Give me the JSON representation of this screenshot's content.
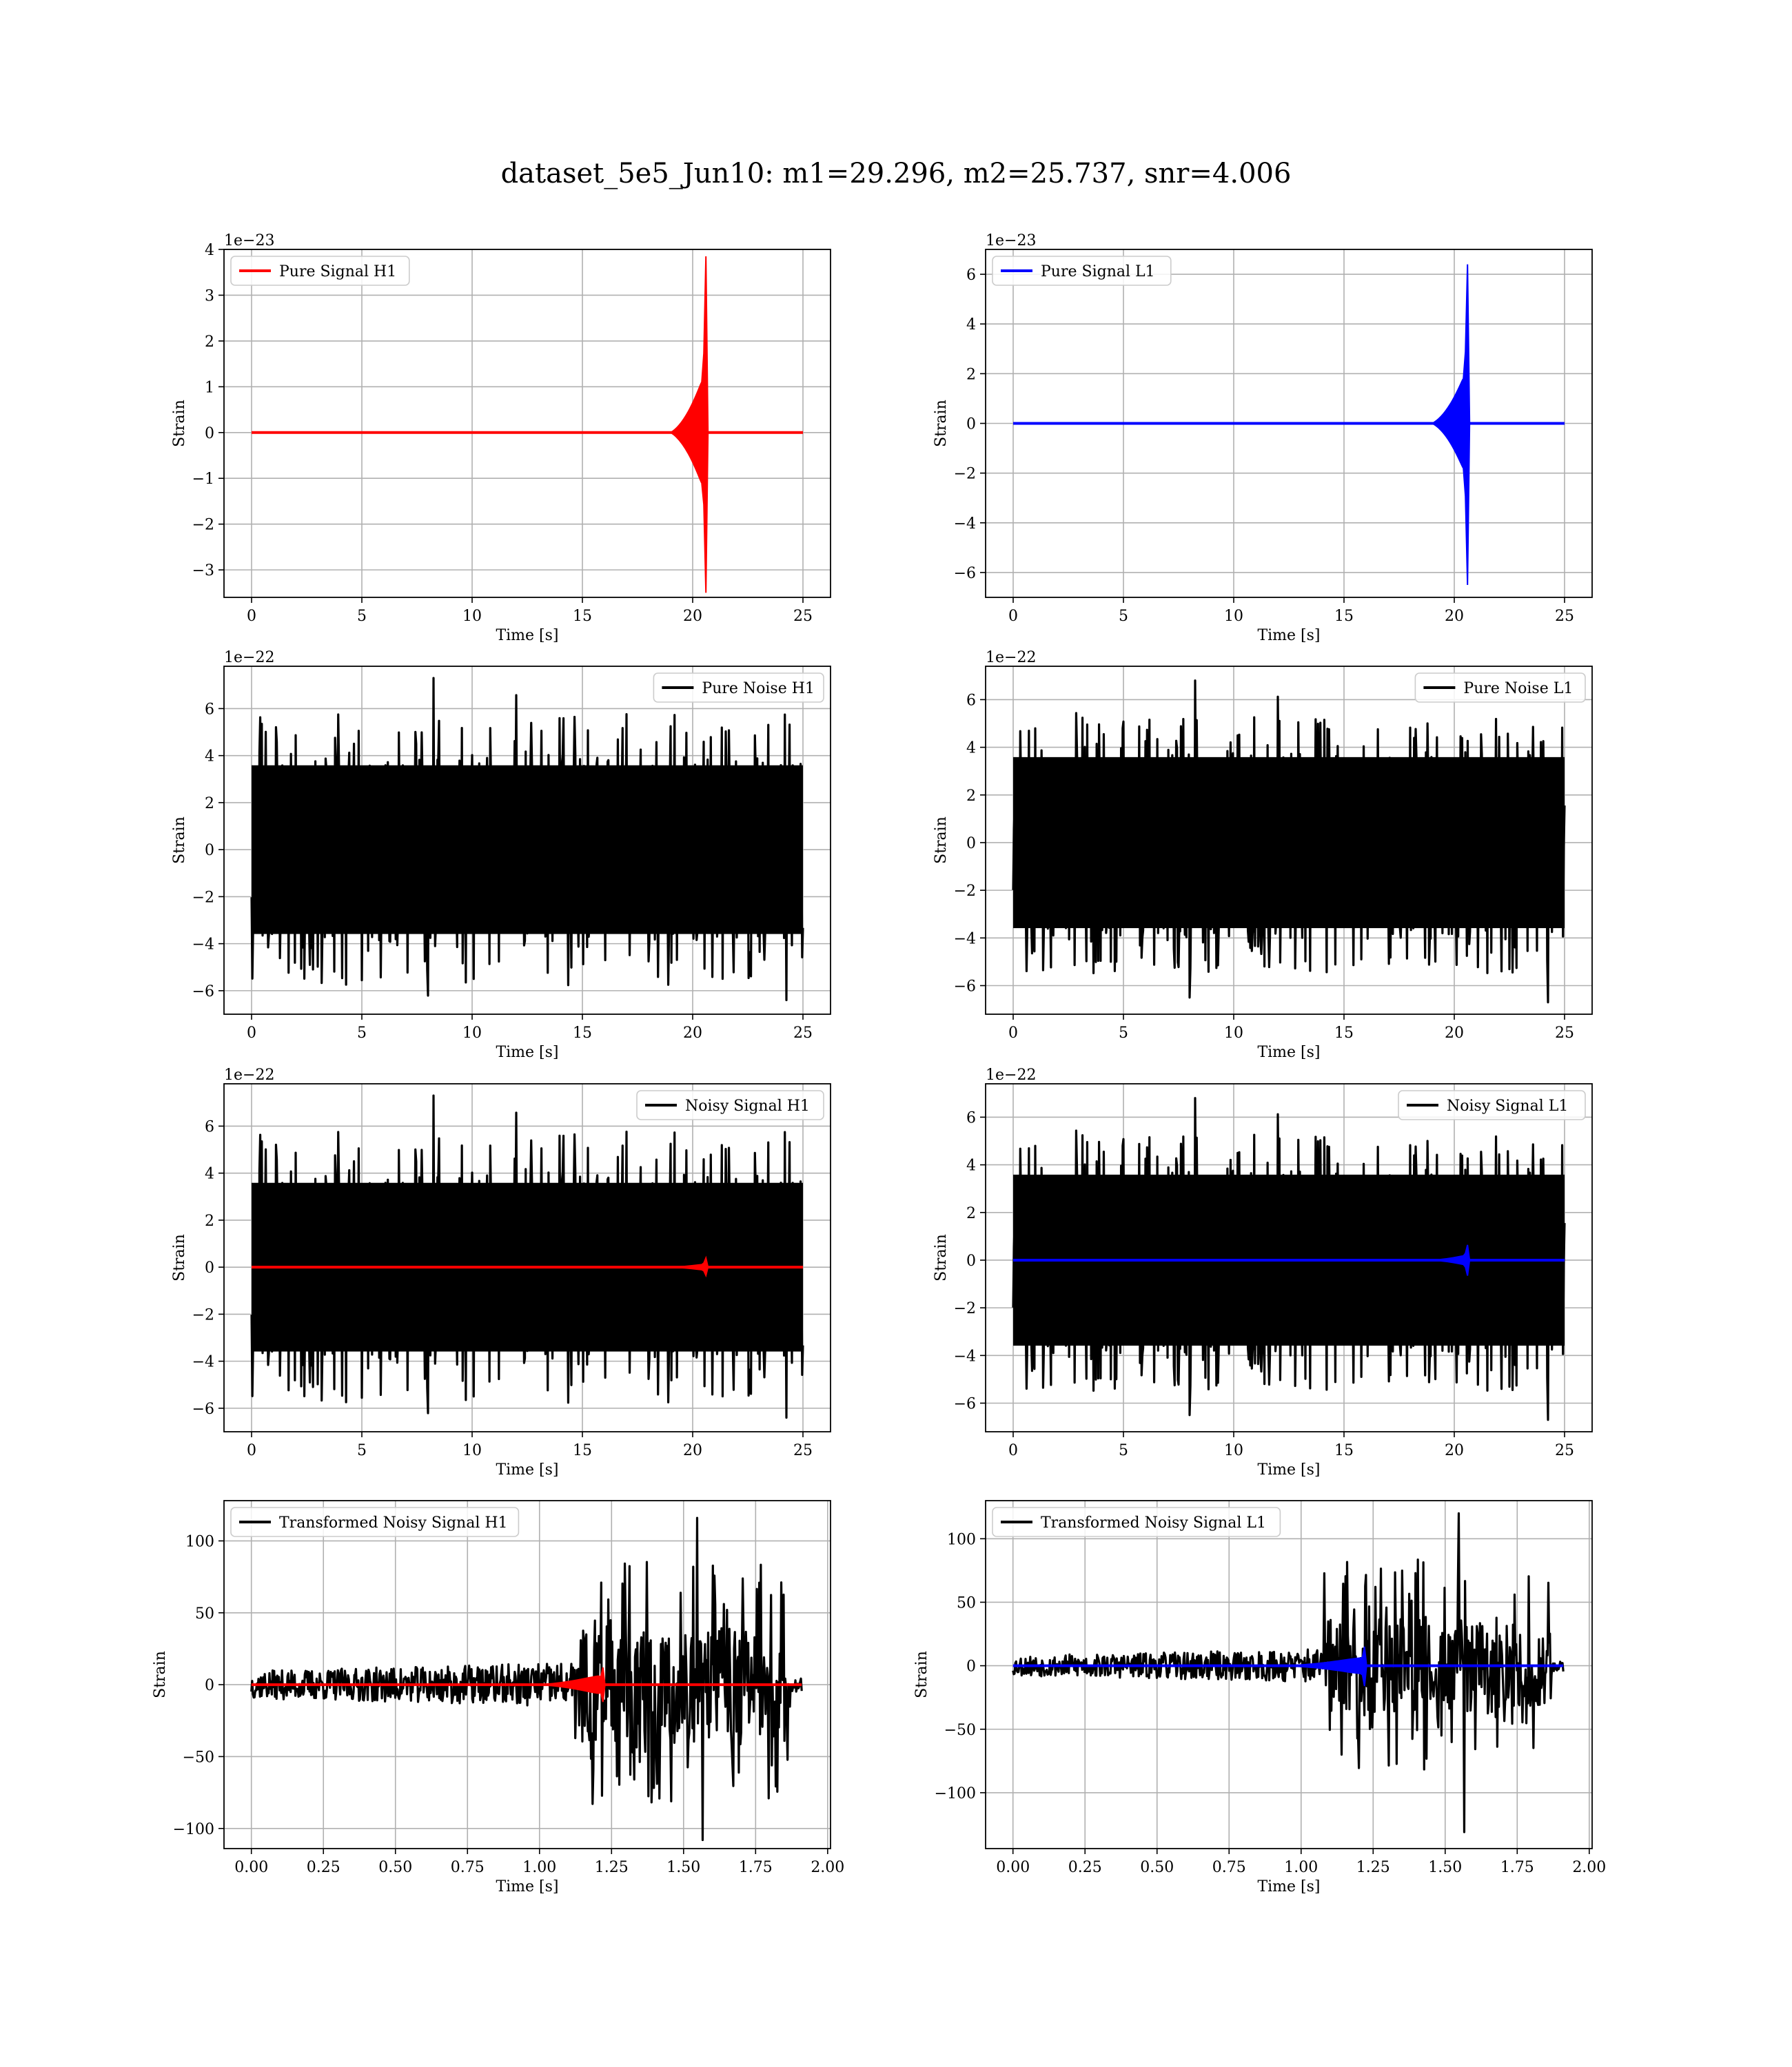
{
  "figure": {
    "title": "dataset_5e5_Jun10: m1=29.296, m2=25.737, snr=4.006"
  },
  "colors": {
    "h1_signal": "#ff0000",
    "l1_signal": "#0000ff",
    "noise": "#000000",
    "grid": "#b0b0b0"
  },
  "chart_data": [
    {
      "type": "line",
      "id": "pure-signal-h1",
      "xlabel": "Time [s]",
      "ylabel": "Strain",
      "offset_label": "1e−23",
      "xlim": [
        -1.25,
        26.25
      ],
      "ylim": [
        -3.6,
        4.0
      ],
      "xticks": [
        0,
        5,
        10,
        15,
        20,
        25
      ],
      "xticklabels": [
        "0",
        "5",
        "10",
        "15",
        "20",
        "25"
      ],
      "yticks": [
        -3,
        -2,
        -1,
        0,
        1,
        2,
        3,
        4
      ],
      "yticklabels": [
        "−3",
        "−2",
        "−1",
        "0",
        "1",
        "2",
        "3",
        "4"
      ],
      "grid": true,
      "legend": "top-left",
      "series": [
        {
          "name": "Pure Signal H1",
          "color": "#ff0000",
          "kind": "chirp",
          "x_start": 0,
          "x_end": 25,
          "merger": 20.6,
          "onset": 19.0,
          "peak_pos": 3.85,
          "peak_neg": -3.5,
          "plateau": 1.1
        }
      ]
    },
    {
      "type": "line",
      "id": "pure-signal-l1",
      "xlabel": "Time [s]",
      "ylabel": "Strain",
      "offset_label": "1e−23",
      "xlim": [
        -1.25,
        26.25
      ],
      "ylim": [
        -7.0,
        7.0
      ],
      "xticks": [
        0,
        5,
        10,
        15,
        20,
        25
      ],
      "xticklabels": [
        "0",
        "5",
        "10",
        "15",
        "20",
        "25"
      ],
      "yticks": [
        -6,
        -4,
        -2,
        0,
        2,
        4,
        6
      ],
      "yticklabels": [
        "−6",
        "−4",
        "−2",
        "0",
        "2",
        "4",
        "6"
      ],
      "grid": true,
      "legend": "top-left",
      "series": [
        {
          "name": "Pure Signal L1",
          "color": "#0000ff",
          "kind": "chirp",
          "x_start": 0,
          "x_end": 25,
          "merger": 20.6,
          "onset": 19.0,
          "peak_pos": 6.4,
          "peak_neg": -6.5,
          "plateau": 1.8
        }
      ]
    },
    {
      "type": "line",
      "id": "pure-noise-h1",
      "xlabel": "Time [s]",
      "ylabel": "Strain",
      "offset_label": "1e−22",
      "xlim": [
        -1.25,
        26.25
      ],
      "ylim": [
        -7.0,
        7.8
      ],
      "xticks": [
        0,
        5,
        10,
        15,
        20,
        25
      ],
      "xticklabels": [
        "0",
        "5",
        "10",
        "15",
        "20",
        "25"
      ],
      "yticks": [
        -6,
        -4,
        -2,
        0,
        2,
        4,
        6
      ],
      "yticklabels": [
        "−6",
        "−4",
        "−2",
        "0",
        "2",
        "4",
        "6"
      ],
      "grid": true,
      "legend": "top-right",
      "series": [
        {
          "name": "Pure Noise H1",
          "color": "#000000",
          "kind": "noise",
          "x_start": 0,
          "x_end": 25,
          "band": 3.9,
          "max": 7.3,
          "min": -6.4,
          "seed": 11
        }
      ]
    },
    {
      "type": "line",
      "id": "pure-noise-l1",
      "xlabel": "Time [s]",
      "ylabel": "Strain",
      "offset_label": "1e−22",
      "xlim": [
        -1.25,
        26.25
      ],
      "ylim": [
        -7.2,
        7.4
      ],
      "xticks": [
        0,
        5,
        10,
        15,
        20,
        25
      ],
      "xticklabels": [
        "0",
        "5",
        "10",
        "15",
        "20",
        "25"
      ],
      "yticks": [
        -6,
        -4,
        -2,
        0,
        2,
        4,
        6
      ],
      "yticklabels": [
        "−6",
        "−4",
        "−2",
        "0",
        "2",
        "4",
        "6"
      ],
      "grid": true,
      "legend": "top-right",
      "series": [
        {
          "name": "Pure Noise L1",
          "color": "#000000",
          "kind": "noise",
          "x_start": 0,
          "x_end": 25,
          "band": 3.9,
          "max": 6.8,
          "min": -6.7,
          "seed": 23
        }
      ]
    },
    {
      "type": "line",
      "id": "noisy-signal-h1",
      "xlabel": "Time [s]",
      "ylabel": "Strain",
      "offset_label": "1e−22",
      "xlim": [
        -1.25,
        26.25
      ],
      "ylim": [
        -7.0,
        7.8
      ],
      "xticks": [
        0,
        5,
        10,
        15,
        20,
        25
      ],
      "xticklabels": [
        "0",
        "5",
        "10",
        "15",
        "20",
        "25"
      ],
      "yticks": [
        -6,
        -4,
        -2,
        0,
        2,
        4,
        6
      ],
      "yticklabels": [
        "−6",
        "−4",
        "−2",
        "0",
        "2",
        "4",
        "6"
      ],
      "grid": true,
      "legend": "top-right",
      "series": [
        {
          "name": "Noisy Signal H1",
          "color": "#000000",
          "kind": "noise",
          "x_start": 0,
          "x_end": 25,
          "band": 3.9,
          "max": 7.3,
          "min": -6.4,
          "seed": 11
        },
        {
          "color": "#ff0000",
          "kind": "chirp",
          "x_start": 0,
          "x_end": 25,
          "merger": 20.6,
          "onset": 19.0,
          "peak_pos": 0.39,
          "peak_neg": -0.35,
          "plateau": 0.11
        }
      ]
    },
    {
      "type": "line",
      "id": "noisy-signal-l1",
      "xlabel": "Time [s]",
      "ylabel": "Strain",
      "offset_label": "1e−22",
      "xlim": [
        -1.25,
        26.25
      ],
      "ylim": [
        -7.2,
        7.4
      ],
      "xticks": [
        0,
        5,
        10,
        15,
        20,
        25
      ],
      "xticklabels": [
        "0",
        "5",
        "10",
        "15",
        "20",
        "25"
      ],
      "yticks": [
        -6,
        -4,
        -2,
        0,
        2,
        4,
        6
      ],
      "yticklabels": [
        "−6",
        "−4",
        "−2",
        "0",
        "2",
        "4",
        "6"
      ],
      "grid": true,
      "legend": "top-right",
      "series": [
        {
          "name": "Noisy Signal L1",
          "color": "#000000",
          "kind": "noise",
          "x_start": 0,
          "x_end": 25,
          "band": 3.9,
          "max": 6.8,
          "min": -6.7,
          "seed": 23
        },
        {
          "color": "#0000ff",
          "kind": "chirp",
          "x_start": 0,
          "x_end": 25,
          "merger": 20.6,
          "onset": 19.0,
          "peak_pos": 0.64,
          "peak_neg": -0.65,
          "plateau": 0.18
        }
      ]
    },
    {
      "type": "line",
      "id": "transformed-noisy-signal-h1",
      "xlabel": "Time [s]",
      "ylabel": "Strain",
      "offset_label": "",
      "xlim": [
        -0.095,
        2.01
      ],
      "ylim": [
        -114,
        128
      ],
      "xticks": [
        0,
        0.25,
        0.5,
        0.75,
        1.0,
        1.25,
        1.5,
        1.75,
        2.0
      ],
      "xticklabels": [
        "0.00",
        "0.25",
        "0.50",
        "0.75",
        "1.00",
        "1.25",
        "1.50",
        "1.75",
        "2.00"
      ],
      "yticks": [
        -100,
        -50,
        0,
        50,
        100
      ],
      "yticklabels": [
        "−100",
        "−50",
        "0",
        "50",
        "100"
      ],
      "grid": true,
      "legend": "top-left",
      "series": [
        {
          "name": "Transformed Noisy Signal H1",
          "color": "#000000",
          "kind": "whitened",
          "x_start": 0,
          "x_end": 1.91,
          "jump": 1.12,
          "pre_band": 12,
          "post_band": 40,
          "max": 116,
          "min": -108,
          "end_cut": 1.87,
          "seed": 37
        },
        {
          "color": "#ff0000",
          "kind": "chirp",
          "x_start": 0,
          "x_end": 1.91,
          "merger": 1.22,
          "onset": 1.0,
          "peak_pos": 12,
          "peak_neg": -12,
          "plateau": 6
        }
      ]
    },
    {
      "type": "line",
      "id": "transformed-noisy-signal-l1",
      "xlabel": "Time [s]",
      "ylabel": "Strain",
      "offset_label": "",
      "xlim": [
        -0.095,
        2.01
      ],
      "ylim": [
        -144,
        130
      ],
      "xticks": [
        0,
        0.25,
        0.5,
        0.75,
        1.0,
        1.25,
        1.5,
        1.75,
        2.0
      ],
      "xticklabels": [
        "0.00",
        "0.25",
        "0.50",
        "0.75",
        "1.00",
        "1.25",
        "1.50",
        "1.75",
        "2.00"
      ],
      "yticks": [
        -100,
        -50,
        0,
        50,
        100
      ],
      "yticklabels": [
        "−100",
        "−50",
        "0",
        "50",
        "100"
      ],
      "grid": true,
      "legend": "top-left",
      "series": [
        {
          "name": "Transformed Noisy Signal L1",
          "color": "#000000",
          "kind": "whitened",
          "x_start": 0,
          "x_end": 1.91,
          "jump": 1.08,
          "pre_band": 10,
          "post_band": 38,
          "max": 120,
          "min": -131,
          "end_cut": 1.87,
          "seed": 53
        },
        {
          "color": "#0000ff",
          "kind": "chirp",
          "x_start": 0,
          "x_end": 1.91,
          "merger": 1.22,
          "onset": 0.95,
          "peak_pos": 15,
          "peak_neg": -16,
          "plateau": 6
        }
      ]
    }
  ]
}
